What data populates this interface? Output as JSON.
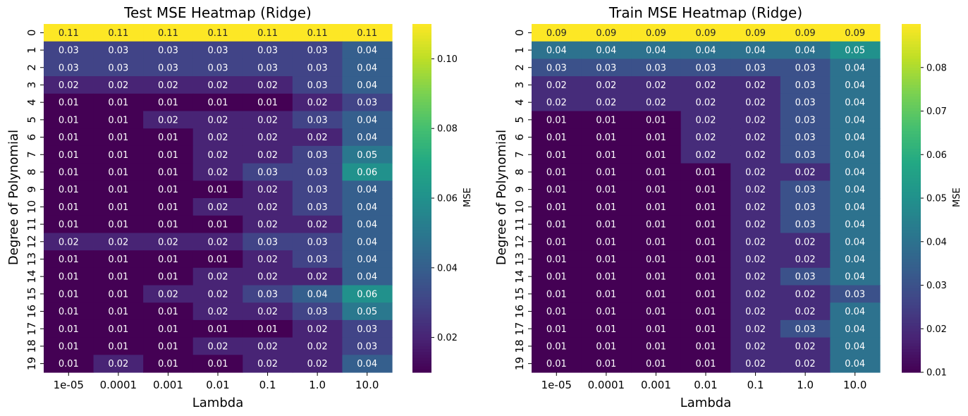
{
  "chart_data": [
    {
      "type": "heatmap",
      "title": "Test MSE Heatmap (Ridge)",
      "xlabel": "Lambda",
      "ylabel": "Degree of Polynomial",
      "x_categories": [
        "1e-05",
        "0.0001",
        "0.001",
        "0.01",
        "0.1",
        "1.0",
        "10.0"
      ],
      "y_categories": [
        "0",
        "1",
        "2",
        "3",
        "4",
        "5",
        "6",
        "7",
        "8",
        "9",
        "10",
        "11",
        "12",
        "13",
        "14",
        "15",
        "16",
        "17",
        "18",
        "19"
      ],
      "values": [
        [
          0.11,
          0.11,
          0.11,
          0.11,
          0.11,
          0.11,
          0.11
        ],
        [
          0.03,
          0.03,
          0.03,
          0.03,
          0.03,
          0.03,
          0.04
        ],
        [
          0.03,
          0.03,
          0.03,
          0.03,
          0.03,
          0.03,
          0.04
        ],
        [
          0.02,
          0.02,
          0.02,
          0.02,
          0.02,
          0.03,
          0.04
        ],
        [
          0.01,
          0.01,
          0.01,
          0.01,
          0.01,
          0.02,
          0.03
        ],
        [
          0.01,
          0.01,
          0.02,
          0.02,
          0.02,
          0.03,
          0.04
        ],
        [
          0.01,
          0.01,
          0.01,
          0.02,
          0.02,
          0.02,
          0.04
        ],
        [
          0.01,
          0.01,
          0.01,
          0.02,
          0.02,
          0.03,
          0.05
        ],
        [
          0.01,
          0.01,
          0.01,
          0.02,
          0.03,
          0.03,
          0.06
        ],
        [
          0.01,
          0.01,
          0.01,
          0.01,
          0.02,
          0.03,
          0.04
        ],
        [
          0.01,
          0.01,
          0.01,
          0.02,
          0.02,
          0.03,
          0.04
        ],
        [
          0.01,
          0.01,
          0.01,
          0.01,
          0.02,
          0.02,
          0.04
        ],
        [
          0.02,
          0.02,
          0.02,
          0.02,
          0.03,
          0.03,
          0.04
        ],
        [
          0.01,
          0.01,
          0.01,
          0.01,
          0.02,
          0.03,
          0.04
        ],
        [
          0.01,
          0.01,
          0.01,
          0.02,
          0.02,
          0.02,
          0.04
        ],
        [
          0.01,
          0.01,
          0.02,
          0.02,
          0.03,
          0.04,
          0.06
        ],
        [
          0.01,
          0.01,
          0.01,
          0.02,
          0.02,
          0.03,
          0.05
        ],
        [
          0.01,
          0.01,
          0.01,
          0.01,
          0.01,
          0.02,
          0.03
        ],
        [
          0.01,
          0.01,
          0.01,
          0.02,
          0.02,
          0.02,
          0.03
        ],
        [
          0.01,
          0.02,
          0.01,
          0.01,
          0.02,
          0.02,
          0.04
        ]
      ],
      "value_range": [
        0.01,
        0.11
      ],
      "colormap": "viridis",
      "colorbar": {
        "label": "MSE",
        "ticks": [
          0.02,
          0.04,
          0.06,
          0.08,
          0.1
        ],
        "tick_labels": [
          "0.02",
          "0.04",
          "0.06",
          "0.08",
          "0.10"
        ]
      }
    },
    {
      "type": "heatmap",
      "title": "Train MSE Heatmap (Ridge)",
      "xlabel": "Lambda",
      "ylabel": "Degree of Polynomial",
      "x_categories": [
        "1e-05",
        "0.0001",
        "0.001",
        "0.01",
        "0.1",
        "1.0",
        "10.0"
      ],
      "y_categories": [
        "0",
        "1",
        "2",
        "3",
        "4",
        "5",
        "6",
        "7",
        "8",
        "9",
        "10",
        "11",
        "12",
        "13",
        "14",
        "15",
        "16",
        "17",
        "18",
        "19"
      ],
      "values": [
        [
          0.09,
          0.09,
          0.09,
          0.09,
          0.09,
          0.09,
          0.09
        ],
        [
          0.04,
          0.04,
          0.04,
          0.04,
          0.04,
          0.04,
          0.05
        ],
        [
          0.03,
          0.03,
          0.03,
          0.03,
          0.03,
          0.03,
          0.04
        ],
        [
          0.02,
          0.02,
          0.02,
          0.02,
          0.02,
          0.03,
          0.04
        ],
        [
          0.02,
          0.02,
          0.02,
          0.02,
          0.02,
          0.03,
          0.04
        ],
        [
          0.01,
          0.01,
          0.01,
          0.02,
          0.02,
          0.03,
          0.04
        ],
        [
          0.01,
          0.01,
          0.01,
          0.02,
          0.02,
          0.03,
          0.04
        ],
        [
          0.01,
          0.01,
          0.01,
          0.02,
          0.02,
          0.03,
          0.04
        ],
        [
          0.01,
          0.01,
          0.01,
          0.01,
          0.02,
          0.02,
          0.04
        ],
        [
          0.01,
          0.01,
          0.01,
          0.01,
          0.02,
          0.03,
          0.04
        ],
        [
          0.01,
          0.01,
          0.01,
          0.01,
          0.02,
          0.03,
          0.04
        ],
        [
          0.01,
          0.01,
          0.01,
          0.01,
          0.02,
          0.03,
          0.04
        ],
        [
          0.01,
          0.01,
          0.01,
          0.01,
          0.02,
          0.02,
          0.04
        ],
        [
          0.01,
          0.01,
          0.01,
          0.01,
          0.02,
          0.02,
          0.04
        ],
        [
          0.01,
          0.01,
          0.01,
          0.01,
          0.02,
          0.03,
          0.04
        ],
        [
          0.01,
          0.01,
          0.01,
          0.01,
          0.02,
          0.02,
          0.03
        ],
        [
          0.01,
          0.01,
          0.01,
          0.01,
          0.02,
          0.02,
          0.04
        ],
        [
          0.01,
          0.01,
          0.01,
          0.01,
          0.02,
          0.03,
          0.04
        ],
        [
          0.01,
          0.01,
          0.01,
          0.01,
          0.02,
          0.02,
          0.04
        ],
        [
          0.01,
          0.01,
          0.01,
          0.01,
          0.02,
          0.02,
          0.04
        ]
      ],
      "value_range": [
        0.01,
        0.09
      ],
      "colormap": "viridis",
      "colorbar": {
        "label": "MSE",
        "ticks": [
          0.01,
          0.02,
          0.03,
          0.04,
          0.05,
          0.06,
          0.07,
          0.08
        ],
        "tick_labels": [
          "0.01",
          "0.02",
          "0.03",
          "0.04",
          "0.05",
          "0.06",
          "0.07",
          "0.08"
        ]
      }
    }
  ]
}
